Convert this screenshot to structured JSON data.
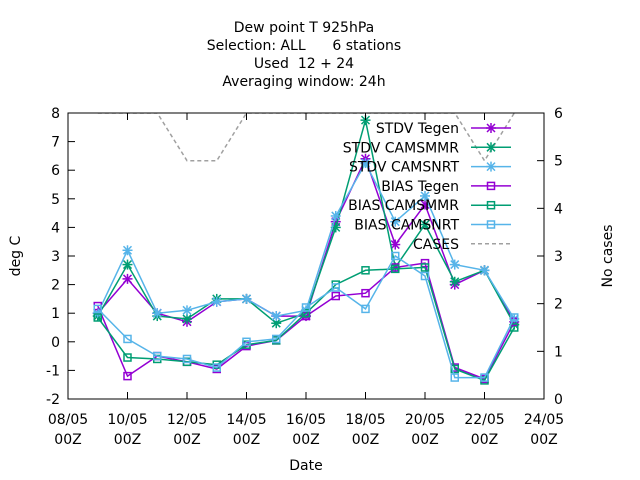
{
  "chart_data": {
    "type": "line",
    "title_lines": [
      "Dew point T 925hPa",
      "Selection: ALL      6 stations",
      "Used  12 + 24",
      "Averaging window: 24h"
    ],
    "xlabel": "Date",
    "ylabel": "deg C",
    "y2label": "No cases",
    "ylim": [
      -2,
      8
    ],
    "y2lim": [
      0,
      6
    ],
    "xlim": [
      -1,
      15
    ],
    "yticks": [
      "-2",
      "-1",
      "0",
      "1",
      "2",
      "3",
      "4",
      "5",
      "6",
      "7",
      "8"
    ],
    "y2ticks": [
      "0",
      "1",
      "2",
      "3",
      "4",
      "5",
      "6"
    ],
    "xticks": [
      {
        "x": -1,
        "l1": "08/05",
        "l2": "00Z"
      },
      {
        "x": 1,
        "l1": "10/05",
        "l2": "00Z"
      },
      {
        "x": 3,
        "l1": "12/05",
        "l2": "00Z"
      },
      {
        "x": 5,
        "l1": "14/05",
        "l2": "00Z"
      },
      {
        "x": 7,
        "l1": "16/05",
        "l2": "00Z"
      },
      {
        "x": 9,
        "l1": "18/05",
        "l2": "00Z"
      },
      {
        "x": 11,
        "l1": "20/05",
        "l2": "00Z"
      },
      {
        "x": 13,
        "l1": "22/05",
        "l2": "00Z"
      },
      {
        "x": 15,
        "l1": "24/05",
        "l2": "00Z"
      }
    ],
    "x": [
      0,
      1,
      2,
      3,
      4,
      5,
      6,
      7,
      8,
      9,
      10,
      11,
      12,
      13,
      14
    ],
    "series": [
      {
        "name": "STDV Tegen",
        "color": "#9400d3",
        "marker": "x",
        "axis": "y",
        "values": [
          1.0,
          2.2,
          1.0,
          0.7,
          1.4,
          1.5,
          0.9,
          0.9,
          4.2,
          6.4,
          3.4,
          4.8,
          2.0,
          2.5,
          0.7
        ]
      },
      {
        "name": "STDV CAMSMMR",
        "color": "#009e73",
        "marker": "x",
        "axis": "y",
        "values": [
          0.9,
          2.7,
          0.9,
          0.8,
          1.5,
          1.5,
          0.65,
          1.0,
          4.0,
          7.75,
          2.6,
          4.1,
          2.1,
          2.5,
          0.6
        ]
      },
      {
        "name": "STDV CAMSNRT",
        "color": "#56b4e9",
        "marker": "x",
        "axis": "y",
        "values": [
          1.0,
          3.2,
          1.0,
          1.1,
          1.4,
          1.5,
          0.9,
          1.1,
          4.4,
          6.25,
          4.2,
          5.1,
          2.7,
          2.5,
          0.8
        ]
      },
      {
        "name": "BIAS Tegen",
        "color": "#9400d3",
        "marker": "s",
        "axis": "y",
        "values": [
          1.25,
          -1.2,
          -0.5,
          -0.7,
          -0.95,
          -0.15,
          0.05,
          0.9,
          1.6,
          1.7,
          2.6,
          2.75,
          -0.9,
          -1.3,
          0.7
        ]
      },
      {
        "name": "BIAS CAMSMMR",
        "color": "#009e73",
        "marker": "s",
        "axis": "y",
        "values": [
          0.85,
          -0.55,
          -0.6,
          -0.7,
          -0.8,
          -0.1,
          0.05,
          1.0,
          2.0,
          2.5,
          2.55,
          2.6,
          -0.95,
          -1.35,
          0.5
        ]
      },
      {
        "name": "BIAS CAMSNRT",
        "color": "#56b4e9",
        "marker": "s",
        "axis": "y",
        "values": [
          1.15,
          0.1,
          -0.5,
          -0.6,
          -0.9,
          0.0,
          0.1,
          1.2,
          1.9,
          1.15,
          3.0,
          2.3,
          -1.25,
          -1.25,
          0.85
        ]
      },
      {
        "name": "CASES",
        "color": "#a0a0a0",
        "marker": "none",
        "dashed": true,
        "axis": "y2",
        "values": [
          6,
          6,
          6,
          5,
          5,
          6,
          6,
          6,
          6,
          6,
          6,
          6,
          6,
          5,
          6
        ]
      }
    ],
    "legend_position": "top-right",
    "grid": false
  }
}
